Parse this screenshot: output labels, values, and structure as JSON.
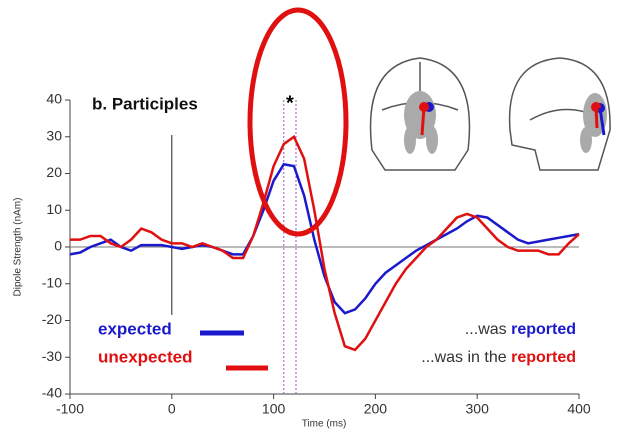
{
  "chart_data": {
    "type": "line",
    "title": "b. Participles",
    "star": "*",
    "xlabel": "Time (ms)",
    "ylabel": "Dipole Strength (nAm)",
    "xlim": [
      -100,
      400
    ],
    "ylim": [
      -40,
      40
    ],
    "xticks": [
      -100,
      0,
      100,
      200,
      300,
      400
    ],
    "yticks": [
      -40,
      -30,
      -20,
      -10,
      0,
      10,
      20,
      30,
      40
    ],
    "markers": [
      110,
      122
    ],
    "x": [
      -100,
      -90,
      -80,
      -70,
      -60,
      -50,
      -40,
      -30,
      -20,
      -10,
      0,
      10,
      20,
      30,
      40,
      50,
      60,
      70,
      80,
      90,
      100,
      110,
      120,
      130,
      140,
      150,
      160,
      170,
      180,
      190,
      200,
      210,
      220,
      230,
      240,
      250,
      260,
      270,
      280,
      290,
      300,
      310,
      320,
      330,
      340,
      350,
      360,
      370,
      380,
      390,
      400
    ],
    "series": [
      {
        "name": "expected",
        "color": "#1a1acc",
        "values": [
          -2,
          -1.5,
          0,
          1,
          2,
          0,
          -1,
          0.5,
          0.5,
          0.5,
          0,
          -0.5,
          0,
          0.5,
          0,
          -1,
          -2,
          -2,
          3,
          10,
          18,
          22.5,
          22,
          14,
          2,
          -8,
          -15,
          -18,
          -17,
          -14,
          -10,
          -7,
          -5,
          -3,
          -1,
          0.5,
          2,
          3.5,
          5,
          7,
          8.5,
          8,
          6,
          4,
          2,
          1,
          1.5,
          2,
          2.5,
          3,
          3.5
        ]
      },
      {
        "name": "unexpected",
        "color": "#e01010",
        "values": [
          2,
          2,
          3,
          3,
          1,
          0,
          2,
          5,
          4,
          2,
          1,
          1,
          0,
          1,
          0,
          -1,
          -3,
          -3,
          3,
          12,
          22,
          28,
          30,
          24,
          10,
          -6,
          -18,
          -27,
          -28,
          -25,
          -20,
          -15,
          -10,
          -6,
          -3,
          0,
          2,
          5,
          8,
          9,
          8,
          5,
          2,
          0,
          -1,
          -1,
          -1,
          -2,
          -2,
          1,
          3.5
        ]
      }
    ],
    "notes": [
      {
        "text": "...was ",
        "highlight": "reported"
      },
      {
        "text": "...was in the ",
        "highlight": "reported"
      }
    ]
  }
}
